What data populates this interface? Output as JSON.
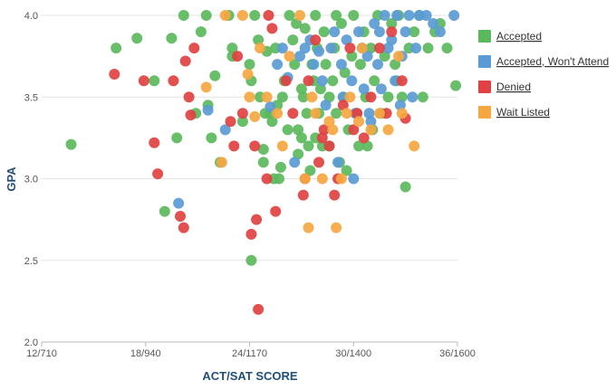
{
  "chart_data": {
    "type": "scatter",
    "title": "",
    "xlabel": "ACT/SAT SCORE",
    "ylabel": "GPA",
    "xlim": [
      12,
      36
    ],
    "ylim": [
      2.0,
      4.0
    ],
    "x_ticks": [
      {
        "value": 12,
        "label": "12/710"
      },
      {
        "value": 18,
        "label": "18/940"
      },
      {
        "value": 24,
        "label": "24/1170"
      },
      {
        "value": 30,
        "label": "30/1400"
      },
      {
        "value": 36,
        "label": "36/1600"
      }
    ],
    "y_ticks": [
      {
        "value": 2.0,
        "label": "2.0"
      },
      {
        "value": 2.5,
        "label": "2.5"
      },
      {
        "value": 3.0,
        "label": "3.0"
      },
      {
        "value": 3.5,
        "label": "3.5"
      },
      {
        "value": 4.0,
        "label": "4.0"
      }
    ],
    "grid": {
      "horizontal": true,
      "vertical": false
    },
    "legend_position": "right",
    "series": [
      {
        "name": "Accepted",
        "color": "#5cb85c",
        "points": [
          [
            13.7,
            3.21
          ],
          [
            16.3,
            3.8
          ],
          [
            17.5,
            3.86
          ],
          [
            18.5,
            3.6
          ],
          [
            19.1,
            2.8
          ],
          [
            19.5,
            3.86
          ],
          [
            19.8,
            3.25
          ],
          [
            20.2,
            4.0
          ],
          [
            20.9,
            3.4
          ],
          [
            21.2,
            3.9
          ],
          [
            21.5,
            4.0
          ],
          [
            21.8,
            3.25
          ],
          [
            22.0,
            3.63
          ],
          [
            22.3,
            3.1
          ],
          [
            22.8,
            4.0
          ],
          [
            23.0,
            3.8
          ],
          [
            23.0,
            3.75
          ],
          [
            23.6,
            3.35
          ],
          [
            24.0,
            3.7
          ],
          [
            24.1,
            3.6
          ],
          [
            24.1,
            2.5
          ],
          [
            24.3,
            4.0
          ],
          [
            24.6,
            3.5
          ],
          [
            24.8,
            3.18
          ],
          [
            24.8,
            3.1
          ],
          [
            24.9,
            3.4
          ],
          [
            25.0,
            3.78
          ],
          [
            25.2,
            3.4
          ],
          [
            25.4,
            3.0
          ],
          [
            25.5,
            3.8
          ],
          [
            25.6,
            3.45
          ],
          [
            25.7,
            3.0
          ],
          [
            25.8,
            3.07
          ],
          [
            25.9,
            3.5
          ],
          [
            26.0,
            3.6
          ],
          [
            26.2,
            3.3
          ],
          [
            26.3,
            4.0
          ],
          [
            26.5,
            3.85
          ],
          [
            26.6,
            3.7
          ],
          [
            26.8,
            3.3
          ],
          [
            26.8,
            3.15
          ],
          [
            27.0,
            3.25
          ],
          [
            27.0,
            3.55
          ],
          [
            27.1,
            3.5
          ],
          [
            27.2,
            3.92
          ],
          [
            27.3,
            3.4
          ],
          [
            27.4,
            3.2
          ],
          [
            27.6,
            3.7
          ],
          [
            27.7,
            3.6
          ],
          [
            27.8,
            4.0
          ],
          [
            27.8,
            3.25
          ],
          [
            27.9,
            3.8
          ],
          [
            28.0,
            3.4
          ],
          [
            28.1,
            3.55
          ],
          [
            28.3,
            3.9
          ],
          [
            28.4,
            3.7
          ],
          [
            28.6,
            3.5
          ],
          [
            28.6,
            3.2
          ],
          [
            28.8,
            3.6
          ],
          [
            28.9,
            3.8
          ],
          [
            29.0,
            3.4
          ],
          [
            29.0,
            4.0
          ],
          [
            29.2,
            3.1
          ],
          [
            29.3,
            3.95
          ],
          [
            29.4,
            3.5
          ],
          [
            29.5,
            3.65
          ],
          [
            29.7,
            3.3
          ],
          [
            29.9,
            3.75
          ],
          [
            30.0,
            4.0
          ],
          [
            30.2,
            3.4
          ],
          [
            30.3,
            3.2
          ],
          [
            30.4,
            3.7
          ],
          [
            30.6,
            3.9
          ],
          [
            30.7,
            3.5
          ],
          [
            30.8,
            3.2
          ],
          [
            31.0,
            3.8
          ],
          [
            31.2,
            3.6
          ],
          [
            31.4,
            4.0
          ],
          [
            31.6,
            3.4
          ],
          [
            31.8,
            3.75
          ],
          [
            32.0,
            3.5
          ],
          [
            32.2,
            3.95
          ],
          [
            32.4,
            3.7
          ],
          [
            32.6,
            4.0
          ],
          [
            32.8,
            3.5
          ],
          [
            33.0,
            2.95
          ],
          [
            33.2,
            3.8
          ],
          [
            33.5,
            3.9
          ],
          [
            33.8,
            4.0
          ],
          [
            34.0,
            3.5
          ],
          [
            34.3,
            3.8
          ],
          [
            34.7,
            3.9
          ],
          [
            35.0,
            3.95
          ],
          [
            35.4,
            3.8
          ],
          [
            35.9,
            3.57
          ],
          [
            24.5,
            3.85
          ],
          [
            25.3,
            3.35
          ],
          [
            26.7,
            3.95
          ],
          [
            28.2,
            3.2
          ],
          [
            29.6,
            3.05
          ],
          [
            31.1,
            3.3
          ],
          [
            32.5,
            3.6
          ],
          [
            21.6,
            3.45
          ],
          [
            27.5,
            3.05
          ]
        ]
      },
      {
        "name": "Accepted, Won't Attend",
        "color": "#5b9bd5",
        "points": [
          [
            19.9,
            2.85
          ],
          [
            21.6,
            3.42
          ],
          [
            22.6,
            3.3
          ],
          [
            25.2,
            3.44
          ],
          [
            25.6,
            3.7
          ],
          [
            25.9,
            3.8
          ],
          [
            26.2,
            3.62
          ],
          [
            26.6,
            3.1
          ],
          [
            26.9,
            3.75
          ],
          [
            27.2,
            3.8
          ],
          [
            27.5,
            3.85
          ],
          [
            27.7,
            3.7
          ],
          [
            28.0,
            3.78
          ],
          [
            28.2,
            3.6
          ],
          [
            28.4,
            3.45
          ],
          [
            28.7,
            3.8
          ],
          [
            28.9,
            3.9
          ],
          [
            29.1,
            3.1
          ],
          [
            29.3,
            3.7
          ],
          [
            29.6,
            3.85
          ],
          [
            29.9,
            3.6
          ],
          [
            30.0,
            3.0
          ],
          [
            30.1,
            3.4
          ],
          [
            30.3,
            3.9
          ],
          [
            30.5,
            3.8
          ],
          [
            30.6,
            3.55
          ],
          [
            30.8,
            3.75
          ],
          [
            31.0,
            3.35
          ],
          [
            31.2,
            3.95
          ],
          [
            31.4,
            3.7
          ],
          [
            31.5,
            3.9
          ],
          [
            31.6,
            3.55
          ],
          [
            31.8,
            4.0
          ],
          [
            32.0,
            3.8
          ],
          [
            32.2,
            3.85
          ],
          [
            32.4,
            3.6
          ],
          [
            32.5,
            4.0
          ],
          [
            32.8,
            3.75
          ],
          [
            33.0,
            3.9
          ],
          [
            33.2,
            4.0
          ],
          [
            33.4,
            3.5
          ],
          [
            33.6,
            3.8
          ],
          [
            33.8,
            4.0
          ],
          [
            34.2,
            4.0
          ],
          [
            34.6,
            3.95
          ],
          [
            35.0,
            3.9
          ],
          [
            35.8,
            4.0
          ],
          [
            29.4,
            3.5
          ],
          [
            30.9,
            3.4
          ],
          [
            32.7,
            3.45
          ]
        ]
      },
      {
        "name": "Denied",
        "color": "#e04141",
        "points": [
          [
            16.2,
            3.64
          ],
          [
            17.9,
            3.6
          ],
          [
            18.5,
            3.22
          ],
          [
            18.7,
            3.03
          ],
          [
            19.6,
            3.6
          ],
          [
            20.0,
            2.77
          ],
          [
            20.2,
            2.7
          ],
          [
            20.3,
            3.72
          ],
          [
            20.5,
            3.5
          ],
          [
            20.6,
            3.39
          ],
          [
            20.8,
            3.8
          ],
          [
            22.9,
            3.35
          ],
          [
            23.1,
            3.2
          ],
          [
            23.3,
            3.75
          ],
          [
            23.6,
            3.4
          ],
          [
            24.1,
            2.66
          ],
          [
            24.3,
            3.2
          ],
          [
            24.4,
            2.75
          ],
          [
            24.5,
            2.2
          ],
          [
            25.0,
            3.0
          ],
          [
            25.1,
            4.0
          ],
          [
            25.3,
            3.92
          ],
          [
            25.5,
            2.8
          ],
          [
            26.1,
            3.6
          ],
          [
            26.5,
            3.4
          ],
          [
            27.1,
            2.9
          ],
          [
            27.2,
            3.0
          ],
          [
            27.4,
            3.6
          ],
          [
            27.8,
            3.85
          ],
          [
            28.0,
            3.1
          ],
          [
            28.2,
            3.25
          ],
          [
            28.3,
            3.3
          ],
          [
            28.6,
            3.2
          ],
          [
            28.9,
            2.9
          ],
          [
            29.1,
            3.0
          ],
          [
            29.4,
            3.45
          ],
          [
            29.8,
            3.8
          ],
          [
            30.0,
            3.3
          ],
          [
            30.2,
            3.4
          ],
          [
            30.6,
            3.25
          ],
          [
            31.0,
            3.5
          ],
          [
            31.5,
            3.8
          ],
          [
            31.9,
            3.4
          ],
          [
            32.2,
            3.9
          ],
          [
            32.8,
            3.6
          ],
          [
            33.0,
            3.37
          ]
        ]
      },
      {
        "name": "Wait Listed",
        "color": "#f5a742",
        "points": [
          [
            21.5,
            3.56
          ],
          [
            22.4,
            3.1
          ],
          [
            22.6,
            4.0
          ],
          [
            23.6,
            4.0
          ],
          [
            23.9,
            3.64
          ],
          [
            24.0,
            3.5
          ],
          [
            24.3,
            3.38
          ],
          [
            24.6,
            3.8
          ],
          [
            25.0,
            3.5
          ],
          [
            25.6,
            3.4
          ],
          [
            25.9,
            3.2
          ],
          [
            26.3,
            3.75
          ],
          [
            26.9,
            4.0
          ],
          [
            27.2,
            3.0
          ],
          [
            27.4,
            2.7
          ],
          [
            27.6,
            3.5
          ],
          [
            27.8,
            3.4
          ],
          [
            28.2,
            3.0
          ],
          [
            28.6,
            3.35
          ],
          [
            28.8,
            3.3
          ],
          [
            29.0,
            2.7
          ],
          [
            29.3,
            3.0
          ],
          [
            29.6,
            3.4
          ],
          [
            29.8,
            3.5
          ],
          [
            30.3,
            3.35
          ],
          [
            30.5,
            3.8
          ],
          [
            31.0,
            3.3
          ],
          [
            31.5,
            3.4
          ],
          [
            32.0,
            3.3
          ],
          [
            32.8,
            3.4
          ],
          [
            33.5,
            3.2
          ],
          [
            32.6,
            3.75
          ]
        ]
      }
    ]
  }
}
